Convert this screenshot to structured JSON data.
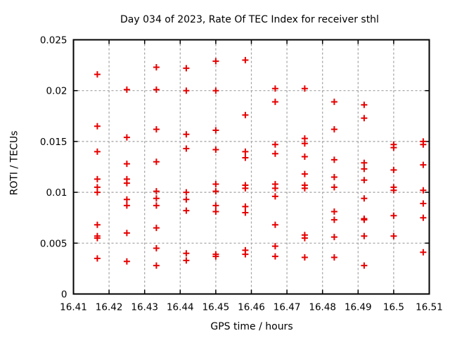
{
  "chart_data": {
    "type": "scatter",
    "title": "Day 034 of 2023, Rate Of TEC Index for receiver sthl",
    "xlabel": "GPS time / hours",
    "ylabel": "ROTI / TECUs",
    "xlim": [
      16.41,
      16.51
    ],
    "ylim": [
      0,
      0.025
    ],
    "xticks": [
      {
        "value": 16.41,
        "label": "16.41"
      },
      {
        "value": 16.42,
        "label": "16.42"
      },
      {
        "value": 16.43,
        "label": "16.43"
      },
      {
        "value": 16.44,
        "label": "16.44"
      },
      {
        "value": 16.45,
        "label": "16.45"
      },
      {
        "value": 16.46,
        "label": "16.46"
      },
      {
        "value": 16.47,
        "label": "16.47"
      },
      {
        "value": 16.48,
        "label": "16.48"
      },
      {
        "value": 16.49,
        "label": "16.49"
      },
      {
        "value": 16.5,
        "label": "16.5"
      },
      {
        "value": 16.51,
        "label": "16.51"
      }
    ],
    "yticks": [
      {
        "value": 0,
        "label": "0"
      },
      {
        "value": 0.005,
        "label": "0.005"
      },
      {
        "value": 0.01,
        "label": "0.01"
      },
      {
        "value": 0.015,
        "label": "0.015"
      },
      {
        "value": 0.02,
        "label": "0.02"
      },
      {
        "value": 0.025,
        "label": "0.025"
      }
    ],
    "grid": {
      "show": true,
      "color": "#a0a0a0",
      "style": "dashed"
    },
    "frame_color": "#000000",
    "legend": "none",
    "marker": {
      "shape": "plus",
      "color": "#e60000",
      "size": 9,
      "stroke_width": 2
    },
    "series": [
      {
        "name": "ROTI",
        "points": [
          [
            16.4167,
            0.0216
          ],
          [
            16.4167,
            0.0165
          ],
          [
            16.4167,
            0.014
          ],
          [
            16.4167,
            0.0113
          ],
          [
            16.4167,
            0.0105
          ],
          [
            16.4167,
            0.01
          ],
          [
            16.4167,
            0.0068
          ],
          [
            16.4167,
            0.0057
          ],
          [
            16.4167,
            0.0055
          ],
          [
            16.4167,
            0.0035
          ],
          [
            16.425,
            0.0201
          ],
          [
            16.425,
            0.0154
          ],
          [
            16.425,
            0.0128
          ],
          [
            16.425,
            0.0113
          ],
          [
            16.425,
            0.0109
          ],
          [
            16.425,
            0.0093
          ],
          [
            16.425,
            0.0087
          ],
          [
            16.425,
            0.006
          ],
          [
            16.425,
            0.0032
          ],
          [
            16.4333,
            0.0223
          ],
          [
            16.4333,
            0.0201
          ],
          [
            16.4333,
            0.0162
          ],
          [
            16.4333,
            0.013
          ],
          [
            16.4333,
            0.0101
          ],
          [
            16.4333,
            0.0094
          ],
          [
            16.4333,
            0.0087
          ],
          [
            16.4333,
            0.0065
          ],
          [
            16.4333,
            0.0045
          ],
          [
            16.4333,
            0.0028
          ],
          [
            16.4417,
            0.0222
          ],
          [
            16.4417,
            0.02
          ],
          [
            16.4417,
            0.0157
          ],
          [
            16.4417,
            0.0143
          ],
          [
            16.4417,
            0.01
          ],
          [
            16.4417,
            0.0093
          ],
          [
            16.4417,
            0.0082
          ],
          [
            16.4417,
            0.004
          ],
          [
            16.4417,
            0.0033
          ],
          [
            16.45,
            0.0229
          ],
          [
            16.45,
            0.02
          ],
          [
            16.45,
            0.0161
          ],
          [
            16.45,
            0.0142
          ],
          [
            16.45,
            0.0108
          ],
          [
            16.45,
            0.0101
          ],
          [
            16.45,
            0.0087
          ],
          [
            16.45,
            0.0081
          ],
          [
            16.45,
            0.0039
          ],
          [
            16.45,
            0.0037
          ],
          [
            16.4583,
            0.023
          ],
          [
            16.4583,
            0.0176
          ],
          [
            16.4583,
            0.014
          ],
          [
            16.4583,
            0.0134
          ],
          [
            16.4583,
            0.0107
          ],
          [
            16.4583,
            0.0104
          ],
          [
            16.4583,
            0.0086
          ],
          [
            16.4583,
            0.008
          ],
          [
            16.4583,
            0.0043
          ],
          [
            16.4583,
            0.0039
          ],
          [
            16.4667,
            0.0202
          ],
          [
            16.4667,
            0.0189
          ],
          [
            16.4667,
            0.0147
          ],
          [
            16.4667,
            0.0138
          ],
          [
            16.4667,
            0.0108
          ],
          [
            16.4667,
            0.0104
          ],
          [
            16.4667,
            0.0096
          ],
          [
            16.4667,
            0.0068
          ],
          [
            16.4667,
            0.0047
          ],
          [
            16.4667,
            0.0037
          ],
          [
            16.475,
            0.0202
          ],
          [
            16.475,
            0.0153
          ],
          [
            16.475,
            0.0148
          ],
          [
            16.475,
            0.0135
          ],
          [
            16.475,
            0.0118
          ],
          [
            16.475,
            0.0107
          ],
          [
            16.475,
            0.0104
          ],
          [
            16.475,
            0.0058
          ],
          [
            16.475,
            0.0055
          ],
          [
            16.475,
            0.0036
          ],
          [
            16.4833,
            0.0189
          ],
          [
            16.4833,
            0.0162
          ],
          [
            16.4833,
            0.0132
          ],
          [
            16.4833,
            0.0115
          ],
          [
            16.4833,
            0.0105
          ],
          [
            16.4833,
            0.0081
          ],
          [
            16.4833,
            0.0073
          ],
          [
            16.4833,
            0.0056
          ],
          [
            16.4833,
            0.0036
          ],
          [
            16.4917,
            0.0186
          ],
          [
            16.4917,
            0.0173
          ],
          [
            16.4917,
            0.0129
          ],
          [
            16.4917,
            0.0123
          ],
          [
            16.4917,
            0.0112
          ],
          [
            16.4917,
            0.0094
          ],
          [
            16.4917,
            0.0074
          ],
          [
            16.4917,
            0.0073
          ],
          [
            16.4917,
            0.0057
          ],
          [
            16.4917,
            0.0028
          ],
          [
            16.5,
            0.0147
          ],
          [
            16.5,
            0.0144
          ],
          [
            16.5,
            0.0122
          ],
          [
            16.5,
            0.0105
          ],
          [
            16.5,
            0.0102
          ],
          [
            16.5,
            0.0077
          ],
          [
            16.5,
            0.0057
          ],
          [
            16.5083,
            0.015
          ],
          [
            16.5083,
            0.0147
          ],
          [
            16.5083,
            0.0127
          ],
          [
            16.5083,
            0.0102
          ],
          [
            16.5083,
            0.0089
          ],
          [
            16.5083,
            0.0075
          ],
          [
            16.5083,
            0.0041
          ]
        ]
      }
    ]
  }
}
